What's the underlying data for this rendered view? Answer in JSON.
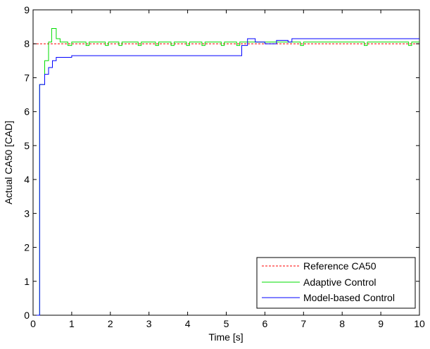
{
  "chart_data": {
    "type": "line",
    "xlabel": "Time [s]",
    "ylabel": "Actual CA50 [CAD]",
    "xlim": [
      0,
      10
    ],
    "ylim": [
      0,
      9
    ],
    "x_ticks": [
      "0",
      "1",
      "2",
      "3",
      "4",
      "5",
      "6",
      "7",
      "8",
      "9",
      "10"
    ],
    "y_ticks": [
      "0",
      "1",
      "2",
      "3",
      "4",
      "5",
      "6",
      "7",
      "8",
      "9"
    ],
    "grid": false,
    "legend_position": "bottom-right",
    "series": [
      {
        "name": "Reference CA50",
        "color": "#ff0000",
        "style": "dashed",
        "step": true,
        "points": [
          [
            0,
            8
          ],
          [
            10,
            8
          ]
        ]
      },
      {
        "name": "Adaptive Control",
        "color": "#00dd00",
        "style": "solid",
        "step": true,
        "points": [
          [
            0.17,
            0
          ],
          [
            0.17,
            6.8
          ],
          [
            0.3,
            7.5
          ],
          [
            0.4,
            8.05
          ],
          [
            0.48,
            8.45
          ],
          [
            0.6,
            8.15
          ],
          [
            0.7,
            8.05
          ],
          [
            0.88,
            8.05
          ],
          [
            0.9,
            7.95
          ],
          [
            1.0,
            8.05
          ],
          [
            1.35,
            8.05
          ],
          [
            1.37,
            7.95
          ],
          [
            1.45,
            8.05
          ],
          [
            1.85,
            8.05
          ],
          [
            1.87,
            7.95
          ],
          [
            1.95,
            8.05
          ],
          [
            2.2,
            8.05
          ],
          [
            2.22,
            7.95
          ],
          [
            2.3,
            8.05
          ],
          [
            2.7,
            8.05
          ],
          [
            2.72,
            7.95
          ],
          [
            2.8,
            8.05
          ],
          [
            3.15,
            8.05
          ],
          [
            3.17,
            7.95
          ],
          [
            3.25,
            8.05
          ],
          [
            3.55,
            8.05
          ],
          [
            3.57,
            7.95
          ],
          [
            3.65,
            8.05
          ],
          [
            3.95,
            8.05
          ],
          [
            3.97,
            7.95
          ],
          [
            4.05,
            8.05
          ],
          [
            4.35,
            8.05
          ],
          [
            4.37,
            7.95
          ],
          [
            4.45,
            8.05
          ],
          [
            4.85,
            8.05
          ],
          [
            4.87,
            7.95
          ],
          [
            4.95,
            8.05
          ],
          [
            5.25,
            8.05
          ],
          [
            5.27,
            7.95
          ],
          [
            5.35,
            8.05
          ],
          [
            6.9,
            8.05
          ],
          [
            6.92,
            7.95
          ],
          [
            7.0,
            8.05
          ],
          [
            8.55,
            8.05
          ],
          [
            8.57,
            7.95
          ],
          [
            8.65,
            8.05
          ],
          [
            9.7,
            8.05
          ],
          [
            9.72,
            7.95
          ],
          [
            9.8,
            8.05
          ],
          [
            10,
            8.05
          ]
        ]
      },
      {
        "name": "Model-based Control",
        "color": "#0000ff",
        "style": "solid",
        "step": true,
        "points": [
          [
            0,
            0
          ],
          [
            0.17,
            0
          ],
          [
            0.17,
            6.8
          ],
          [
            0.3,
            7.1
          ],
          [
            0.4,
            7.3
          ],
          [
            0.5,
            7.5
          ],
          [
            0.6,
            7.6
          ],
          [
            1.0,
            7.65
          ],
          [
            5.4,
            7.65
          ],
          [
            5.4,
            7.95
          ],
          [
            5.55,
            8.15
          ],
          [
            5.75,
            8.05
          ],
          [
            6.0,
            8.0
          ],
          [
            6.3,
            8.0
          ],
          [
            6.3,
            8.1
          ],
          [
            6.6,
            8.05
          ],
          [
            6.7,
            8.15
          ],
          [
            10,
            8.15
          ]
        ]
      }
    ]
  }
}
